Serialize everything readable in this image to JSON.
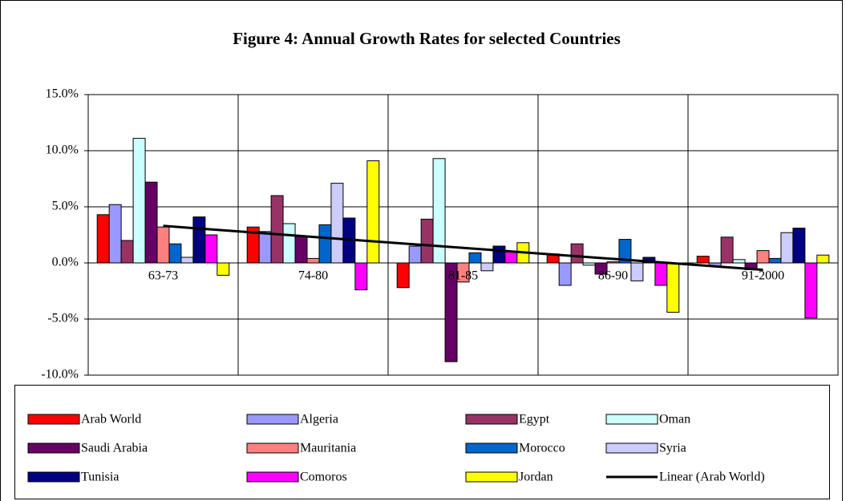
{
  "chart_data": {
    "type": "bar",
    "title": "Figure 4: Annual Growth Rates for selected Countries",
    "categories": [
      "63-73",
      "74-80",
      "81-85",
      "86-90",
      "91-2000"
    ],
    "series": [
      {
        "name": "Arab World",
        "color": "#ff0000",
        "values": [
          4.3,
          3.2,
          -2.2,
          0.8,
          0.6
        ]
      },
      {
        "name": "Algeria",
        "color": "#9999ff",
        "values": [
          5.2,
          2.8,
          1.5,
          -2.0,
          -0.3
        ]
      },
      {
        "name": "Egypt",
        "color": "#993366",
        "values": [
          2.0,
          6.0,
          3.9,
          1.7,
          2.3
        ]
      },
      {
        "name": "Oman",
        "color": "#ccffff",
        "values": [
          11.1,
          3.5,
          9.3,
          -0.2,
          0.3
        ]
      },
      {
        "name": "Saudi Arabia",
        "color": "#660066",
        "values": [
          7.2,
          2.4,
          -8.8,
          -1.0,
          -0.6
        ]
      },
      {
        "name": "Mauritania",
        "color": "#ff8080",
        "values": [
          3.2,
          0.4,
          -1.7,
          0.1,
          1.1
        ]
      },
      {
        "name": "Morocco",
        "color": "#0066cc",
        "values": [
          1.7,
          3.4,
          0.9,
          2.1,
          0.4
        ]
      },
      {
        "name": "Syria",
        "color": "#ccccff",
        "values": [
          0.5,
          7.1,
          -0.7,
          -1.6,
          2.7
        ]
      },
      {
        "name": "Tunisia",
        "color": "#000080",
        "values": [
          4.1,
          4.0,
          1.5,
          0.5,
          3.1
        ]
      },
      {
        "name": "Comoros",
        "color": "#ff00ff",
        "values": [
          2.5,
          -2.4,
          1.0,
          -2.0,
          -4.9
        ]
      },
      {
        "name": "Jordan",
        "color": "#ffff00",
        "values": [
          -1.1,
          9.1,
          1.8,
          -4.4,
          0.7
        ]
      }
    ],
    "trendline": {
      "name": "Linear (Arab World)",
      "color": "#000000"
    },
    "ylim": [
      -10,
      15
    ],
    "yticks": [
      {
        "value": 15,
        "label": "15.0%"
      },
      {
        "value": 10,
        "label": "10.0%"
      },
      {
        "value": 5,
        "label": "5.0%"
      },
      {
        "value": 0,
        "label": "0.0%"
      },
      {
        "value": -5,
        "label": "-5.0%"
      },
      {
        "value": -10,
        "label": "-10.0%"
      }
    ],
    "grid": true,
    "legend": "bottom"
  }
}
